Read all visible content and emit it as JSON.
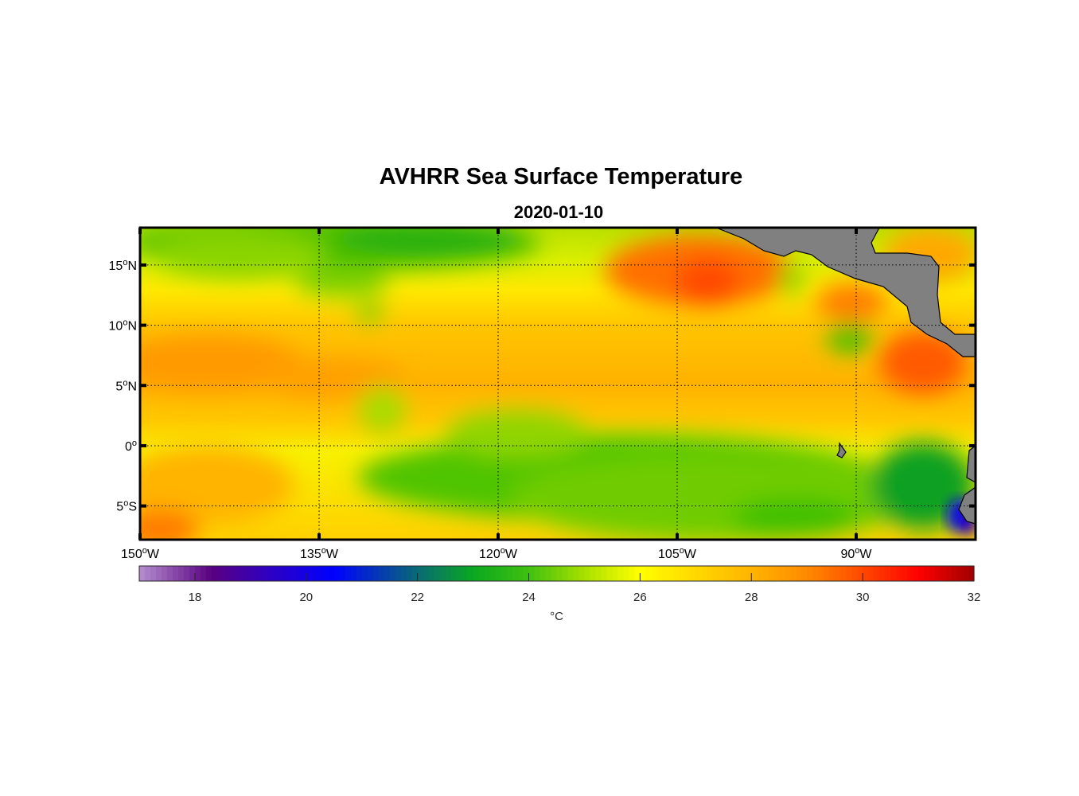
{
  "title": "AVHRR Sea Surface Temperature",
  "subtitle": "2020-01-10",
  "degree_mark": "o",
  "map": {
    "lon_range": [
      -150,
      -80
    ],
    "lat_range": [
      -7.8,
      18.1
    ],
    "lon_ticks": [
      {
        "value": -150,
        "num": "150",
        "hemi": "W"
      },
      {
        "value": -135,
        "num": "135",
        "hemi": "W"
      },
      {
        "value": -120,
        "num": "120",
        "hemi": "W"
      },
      {
        "value": -105,
        "num": "105",
        "hemi": "W"
      },
      {
        "value": -90,
        "num": "90",
        "hemi": "W"
      }
    ],
    "lat_ticks": [
      {
        "value": 15,
        "num": "15",
        "hemi": "N"
      },
      {
        "value": 10,
        "num": "10",
        "hemi": "N"
      },
      {
        "value": 5,
        "num": "5",
        "hemi": "N"
      },
      {
        "value": 0,
        "num": "0",
        "hemi": ""
      },
      {
        "value": -5,
        "num": "5",
        "hemi": "S"
      }
    ],
    "land_color": "#808080"
  },
  "colorbar": {
    "range": [
      17,
      32
    ],
    "ticks": [
      "18",
      "20",
      "22",
      "24",
      "26",
      "28",
      "30",
      "32"
    ],
    "unit": "°C",
    "stops": [
      [
        17,
        "#b48fd0"
      ],
      [
        18.3,
        "#5a0080"
      ],
      [
        19.3,
        "#3000c0"
      ],
      [
        20.5,
        "#0000ff"
      ],
      [
        22,
        "#0a6a74"
      ],
      [
        23,
        "#0aa820"
      ],
      [
        24,
        "#40c010"
      ],
      [
        25,
        "#a8e000"
      ],
      [
        26,
        "#ffff00"
      ],
      [
        27,
        "#ffd800"
      ],
      [
        28,
        "#ffb400"
      ],
      [
        29,
        "#ff8a00"
      ],
      [
        30,
        "#ff4800"
      ],
      [
        31,
        "#ff0000"
      ],
      [
        32,
        "#a00000"
      ]
    ]
  }
}
